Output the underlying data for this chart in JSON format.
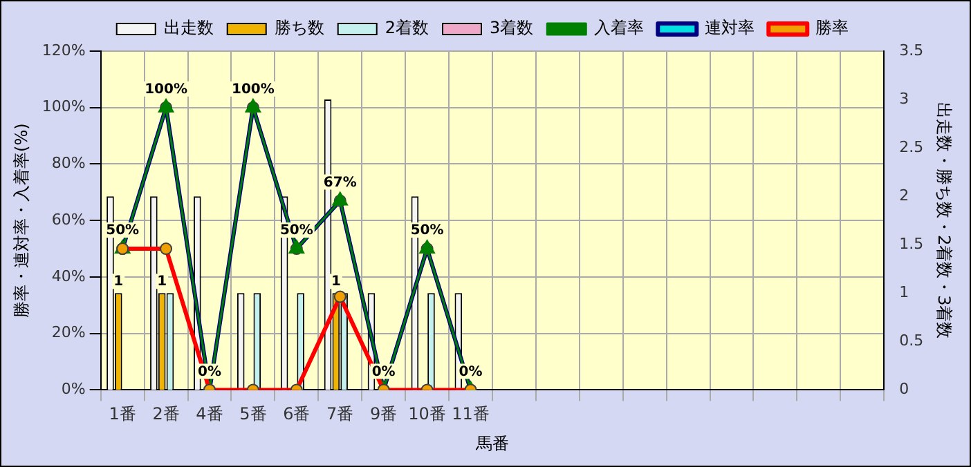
{
  "chart_data": {
    "type": "bar",
    "xlabel": "馬番",
    "ylabel": "勝率・連対率・入着率(%)",
    "y2label": "出走数・勝ち数・2着数・3着数",
    "categories": [
      "1番",
      "2番",
      "4番",
      "5番",
      "6番",
      "7番",
      "9番",
      "10番",
      "11番",
      null,
      null,
      null,
      null,
      null,
      null,
      null,
      null,
      null
    ],
    "series": [
      {
        "name": "出走数",
        "axis": "y2",
        "color": "#f4f4f4",
        "values": [
          2,
          2,
          2,
          1,
          2,
          3,
          1,
          2,
          1,
          null,
          null,
          null,
          null,
          null,
          null,
          null,
          null,
          null
        ]
      },
      {
        "name": "勝ち数",
        "axis": "y2",
        "color": "#f0b400",
        "values": [
          1,
          1,
          0,
          0,
          0,
          1,
          0,
          0,
          0,
          null,
          null,
          null,
          null,
          null,
          null,
          null,
          null,
          null
        ],
        "value_labels": [
          "1",
          "1",
          null,
          null,
          null,
          "1",
          null,
          null,
          null,
          null,
          null,
          null,
          null,
          null,
          null,
          null,
          null,
          null
        ]
      },
      {
        "name": "2着数",
        "axis": "y2",
        "color": "#c4f0f0",
        "values": [
          0,
          1,
          0,
          1,
          1,
          1,
          0,
          1,
          0,
          null,
          null,
          null,
          null,
          null,
          null,
          null,
          null,
          null
        ]
      },
      {
        "name": "3着数",
        "axis": "y2",
        "color": "#f0a8c8",
        "values": [
          0,
          0,
          0,
          0,
          0,
          0,
          0,
          0,
          0,
          null,
          null,
          null,
          null,
          null,
          null,
          null,
          null,
          null
        ]
      },
      {
        "name": "入着率",
        "type": "line",
        "color": "#008000",
        "marker": "triangle",
        "values": [
          50,
          100,
          0,
          100,
          50,
          67,
          0,
          50,
          0,
          null,
          null,
          null,
          null,
          null,
          null,
          null,
          null,
          null
        ]
      },
      {
        "name": "連対率",
        "type": "line",
        "color": "#000080",
        "marker": "circle",
        "values": [
          50,
          100,
          0,
          100,
          50,
          67,
          0,
          50,
          0,
          null,
          null,
          null,
          null,
          null,
          null,
          null,
          null,
          null
        ],
        "value_labels": [
          "50%",
          "100%",
          "0%",
          "100%",
          "50%",
          "67%",
          "0%",
          "50%",
          "0%",
          null,
          null,
          null,
          null,
          null,
          null,
          null,
          null,
          null
        ]
      },
      {
        "name": "勝率",
        "type": "line",
        "color": "#ff0000",
        "marker": "circle",
        "values": [
          50,
          50,
          0,
          0,
          0,
          33,
          0,
          0,
          0,
          null,
          null,
          null,
          null,
          null,
          null,
          null,
          null,
          null
        ]
      }
    ],
    "ylim": [
      0,
      120
    ],
    "yticks": [
      {
        "value": 0,
        "label": "0%"
      },
      {
        "value": 20,
        "label": "20%"
      },
      {
        "value": 40,
        "label": "40%"
      },
      {
        "value": 60,
        "label": "60%"
      },
      {
        "value": 80,
        "label": "80%"
      },
      {
        "value": 100,
        "label": "100%"
      },
      {
        "value": 120,
        "label": "120%"
      }
    ],
    "y2lim": [
      0,
      3.5
    ],
    "y2ticks": [
      0,
      0.5,
      1,
      1.5,
      2,
      2.5,
      3,
      3.5
    ],
    "grid": true,
    "legend": "top"
  }
}
